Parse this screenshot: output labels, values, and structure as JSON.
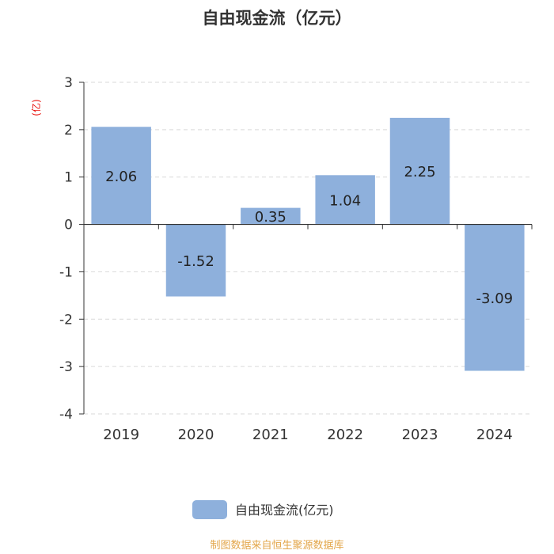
{
  "chart_data": {
    "type": "bar",
    "title": "自由现金流（亿元）",
    "unit_label": "(亿)",
    "categories": [
      "2019",
      "2020",
      "2021",
      "2022",
      "2023",
      "2024"
    ],
    "series": [
      {
        "name": "自由现金流(亿元)",
        "values": [
          2.06,
          -1.52,
          0.35,
          1.04,
          2.25,
          -3.09
        ]
      }
    ],
    "data_labels": [
      "2.06",
      "-1.52",
      "0.35",
      "1.04",
      "2.25",
      "-3.09"
    ],
    "ylim": [
      -4,
      3
    ],
    "yticks": [
      3,
      2,
      1,
      0,
      -1,
      -2,
      -3,
      -4
    ],
    "grid": true,
    "legend_position": "bottom",
    "bar_color": "#8eb0dc",
    "source": "制图数据来自恒生聚源数据库"
  }
}
